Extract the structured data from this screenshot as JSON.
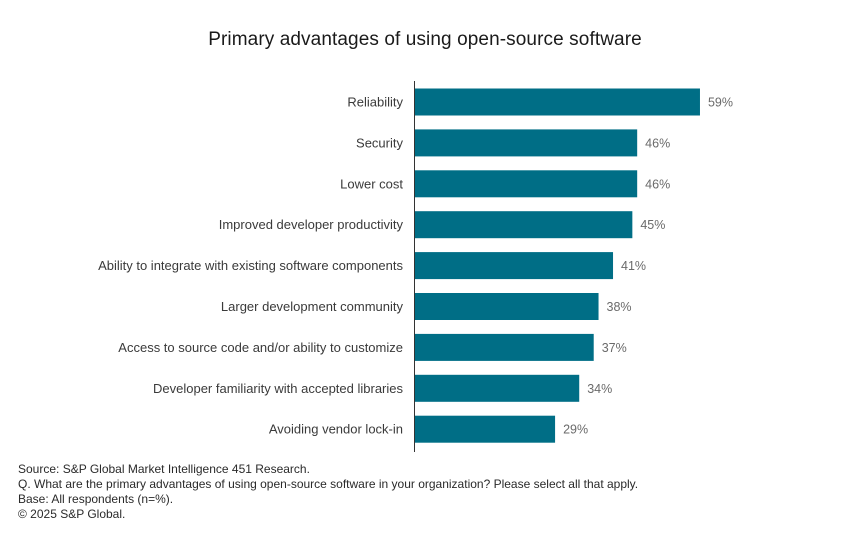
{
  "chart_data": {
    "type": "bar",
    "orientation": "horizontal",
    "title": "Primary advantages of using open-source software",
    "categories": [
      "Reliability",
      "Security",
      "Lower cost",
      "Improved developer productivity",
      "Ability to integrate with existing software components",
      "Larger development community",
      "Access to source code and/or ability to customize",
      "Developer familiarity with accepted libraries",
      "Avoiding vendor lock-in"
    ],
    "values": [
      59,
      46,
      46,
      45,
      41,
      38,
      37,
      34,
      29
    ],
    "value_labels": [
      "59%",
      "46%",
      "46%",
      "45%",
      "41%",
      "38%",
      "37%",
      "34%",
      "29%"
    ],
    "unit": "%",
    "bar_color": "#006e86",
    "grid": false
  },
  "footer": {
    "source": "Source: S&P Global Market Intelligence 451 Research.",
    "question": "Q. What are the primary advantages of using open-source software in your organization? Please select all that apply.",
    "base": "Base: All respondents (n=%).",
    "copyright": "© 2025 S&P Global."
  }
}
